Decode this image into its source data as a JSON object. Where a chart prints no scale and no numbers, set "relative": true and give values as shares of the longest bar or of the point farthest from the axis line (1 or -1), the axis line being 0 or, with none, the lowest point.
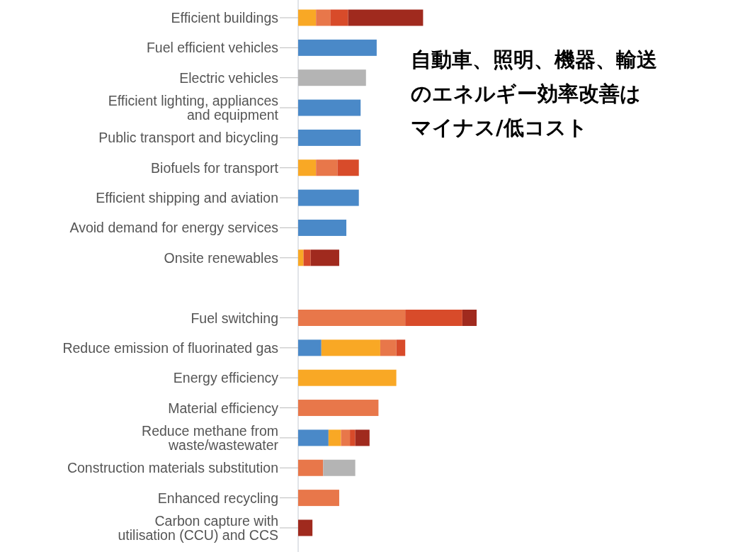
{
  "chart_data": {
    "type": "bar",
    "orientation": "horizontal",
    "stacked": true,
    "relative": true,
    "categories": [
      "Efficient buildings",
      "Fuel efficient vehicles",
      "Electric vehicles",
      "Efficient lighting, appliances\nand equipment",
      "Public transport and bicycling",
      "Biofuels for transport",
      "Efficient shipping and aviation",
      "Avoid demand for energy services",
      "Onsite renewables",
      null,
      "Fuel switching",
      "Reduce emission of fluorinated gas",
      "Energy efficiency",
      "Material efficiency",
      "Reduce methane from\nwaste/wastewater",
      "Construction materials substitution",
      "Enhanced recycling",
      "Carbon capture with\nutilisation (CCU) and CCS"
    ],
    "series": [
      {
        "color": "#4a89c8",
        "values": [
          null,
          0.44,
          null,
          0.35,
          0.35,
          null,
          0.34,
          0.27,
          null,
          null,
          null,
          0.13,
          null,
          null,
          0.17,
          null,
          null,
          null
        ]
      },
      {
        "color": "#f9a825",
        "values": [
          0.1,
          null,
          null,
          null,
          null,
          0.1,
          null,
          null,
          0.03,
          null,
          null,
          0.33,
          0.55,
          null,
          0.07,
          null,
          null,
          null
        ]
      },
      {
        "color": "#e8774a",
        "values": [
          0.08,
          null,
          null,
          null,
          null,
          0.12,
          null,
          null,
          null,
          null,
          0.6,
          0.09,
          null,
          0.45,
          0.05,
          0.14,
          0.23,
          null
        ]
      },
      {
        "color": "#d84b2a",
        "values": [
          0.1,
          null,
          null,
          null,
          null,
          0.12,
          null,
          null,
          0.04,
          null,
          0.32,
          0.05,
          null,
          null,
          0.03,
          null,
          null,
          null
        ]
      },
      {
        "color": "#a02a1e",
        "values": [
          0.42,
          null,
          null,
          null,
          null,
          null,
          null,
          null,
          0.16,
          null,
          0.08,
          null,
          null,
          null,
          0.08,
          null,
          null,
          0.08
        ]
      },
      {
        "color": "#b4b4b4",
        "values": [
          null,
          null,
          0.38,
          null,
          null,
          null,
          null,
          null,
          null,
          null,
          null,
          null,
          null,
          null,
          null,
          0.18,
          null,
          null
        ]
      }
    ],
    "annotations": [
      "自動車、照明、機器、輸送のエネルギー効率改善はマイナス/低コスト"
    ]
  }
}
